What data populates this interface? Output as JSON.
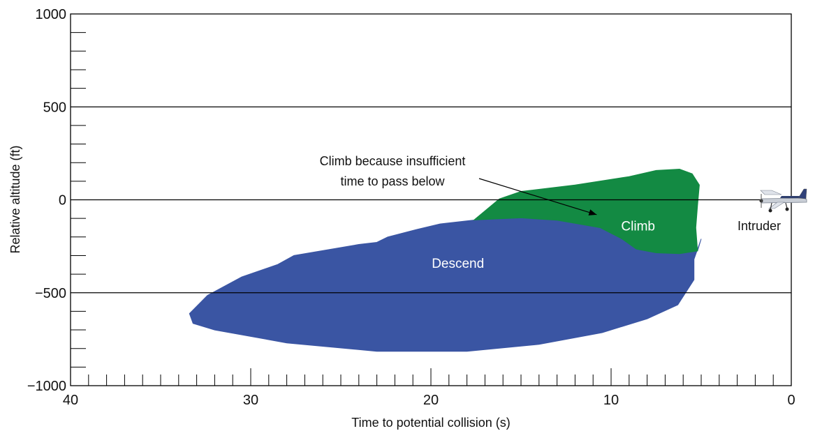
{
  "chart_data": {
    "type": "area",
    "xlabel": "Time to potential collision (s)",
    "ylabel": "Relative altitude (ft)",
    "xlim": [
      40,
      0
    ],
    "ylim": [
      -1000,
      1000
    ],
    "x_ticks": [
      40,
      30,
      20,
      10,
      0
    ],
    "x_tick_labels": [
      "40",
      "30",
      "20",
      "10",
      "0"
    ],
    "y_ticks": [
      1000,
      500,
      0,
      -500,
      -1000
    ],
    "y_tick_labels": [
      "1000",
      "500",
      "0",
      "−500",
      "−1000"
    ],
    "x_minor_step": 1,
    "y_minor_step": 100,
    "gridlines_y": [
      500,
      0,
      -500
    ],
    "regions": [
      {
        "name": "Descend",
        "color": "#3a55a3",
        "polygon": [
          [
            33.4,
            -612
          ],
          [
            32.4,
            -514
          ],
          [
            30.5,
            -415
          ],
          [
            28.5,
            -348
          ],
          [
            27.6,
            -300
          ],
          [
            24.0,
            -240
          ],
          [
            23.0,
            -229
          ],
          [
            22.4,
            -200
          ],
          [
            20.8,
            -160
          ],
          [
            19.5,
            -130
          ],
          [
            17.5,
            -108
          ],
          [
            15.0,
            -97
          ],
          [
            13.0,
            -110
          ],
          [
            10.6,
            -150
          ],
          [
            9.4,
            -210
          ],
          [
            8.6,
            -265
          ],
          [
            7.5,
            -285
          ],
          [
            6.2,
            -290
          ],
          [
            5.2,
            -275
          ],
          [
            5.0,
            -210
          ],
          [
            5.4,
            -320
          ],
          [
            5.4,
            -430
          ],
          [
            6.3,
            -565
          ],
          [
            8.0,
            -640
          ],
          [
            10.5,
            -715
          ],
          [
            14.0,
            -778
          ],
          [
            18.0,
            -815
          ],
          [
            23.0,
            -815
          ],
          [
            28.0,
            -770
          ],
          [
            32.0,
            -700
          ],
          [
            33.2,
            -665
          ]
        ]
      },
      {
        "name": "Climb",
        "color": "#138a43",
        "polygon": [
          [
            17.6,
            -108
          ],
          [
            16.2,
            5
          ],
          [
            15.0,
            45
          ],
          [
            12.0,
            80
          ],
          [
            9.0,
            125
          ],
          [
            7.5,
            158
          ],
          [
            6.2,
            165
          ],
          [
            5.5,
            140
          ],
          [
            5.1,
            80
          ],
          [
            5.2,
            -30
          ],
          [
            5.3,
            -150
          ],
          [
            5.2,
            -275
          ],
          [
            6.2,
            -290
          ],
          [
            7.5,
            -285
          ],
          [
            8.6,
            -265
          ],
          [
            9.4,
            -210
          ],
          [
            10.6,
            -150
          ],
          [
            13.0,
            -110
          ],
          [
            15.0,
            -97
          ]
        ]
      }
    ],
    "region_labels": [
      {
        "text": "Descend",
        "x": 18.5,
        "y": -365
      },
      {
        "text": "Climb",
        "x": 8.5,
        "y": -165
      }
    ],
    "annotation": {
      "lines": [
        "Climb because insufficient",
        "time to pass below"
      ],
      "arrow_to": [
        10.8,
        -80
      ]
    },
    "intruder": {
      "label": "Intruder",
      "x": 0,
      "y": 0
    }
  }
}
